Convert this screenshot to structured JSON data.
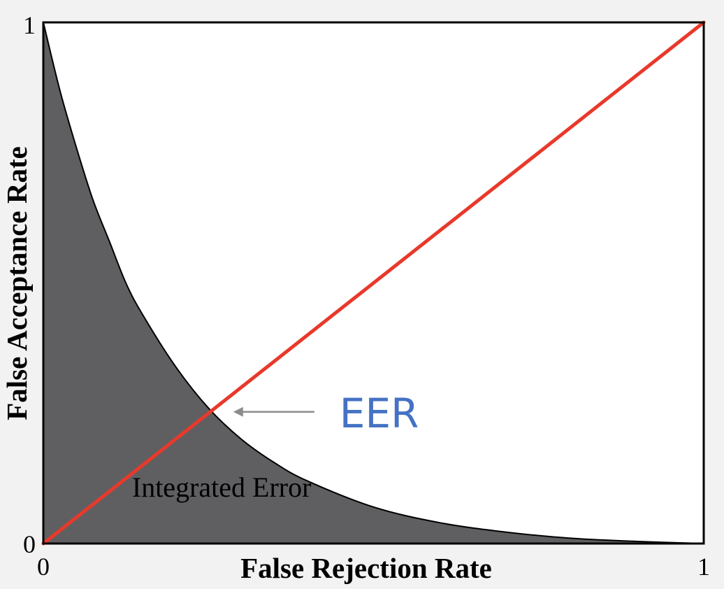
{
  "chart_data": {
    "type": "area",
    "xlabel": "False Rejection Rate",
    "ylabel": "False Acceptance Rate",
    "xlim": [
      0,
      1
    ],
    "ylim": [
      0,
      1
    ],
    "x_ticks": [
      "0",
      "1"
    ],
    "y_ticks": [
      "0",
      "1"
    ],
    "grid": false,
    "series": [
      {
        "x": [
          0,
          0.025,
          0.05,
          0.075,
          0.1,
          0.125,
          0.15,
          0.2,
          0.25,
          0.3,
          0.35,
          0.4,
          0.5,
          0.6,
          0.7,
          0.8,
          0.9,
          1.0
        ],
        "y": [
          1.0,
          0.87,
          0.76,
          0.66,
          0.58,
          0.5,
          0.44,
          0.34,
          0.26,
          0.2,
          0.155,
          0.12,
          0.07,
          0.04,
          0.022,
          0.01,
          0.004,
          0.0
        ]
      },
      {
        "x": [
          0,
          1
        ],
        "y": [
          0,
          1
        ]
      }
    ],
    "annotations": [
      {
        "text": "Integrated Error",
        "x": 0.27,
        "y": 0.09
      },
      {
        "text": "EER",
        "x": 0.258,
        "y": 0.258
      }
    ],
    "colors": {
      "area_fill": "#5f5f62",
      "diagonal": "#e8392b",
      "eer_text": "#4472c4",
      "arrow": "#8c8c8c"
    }
  }
}
